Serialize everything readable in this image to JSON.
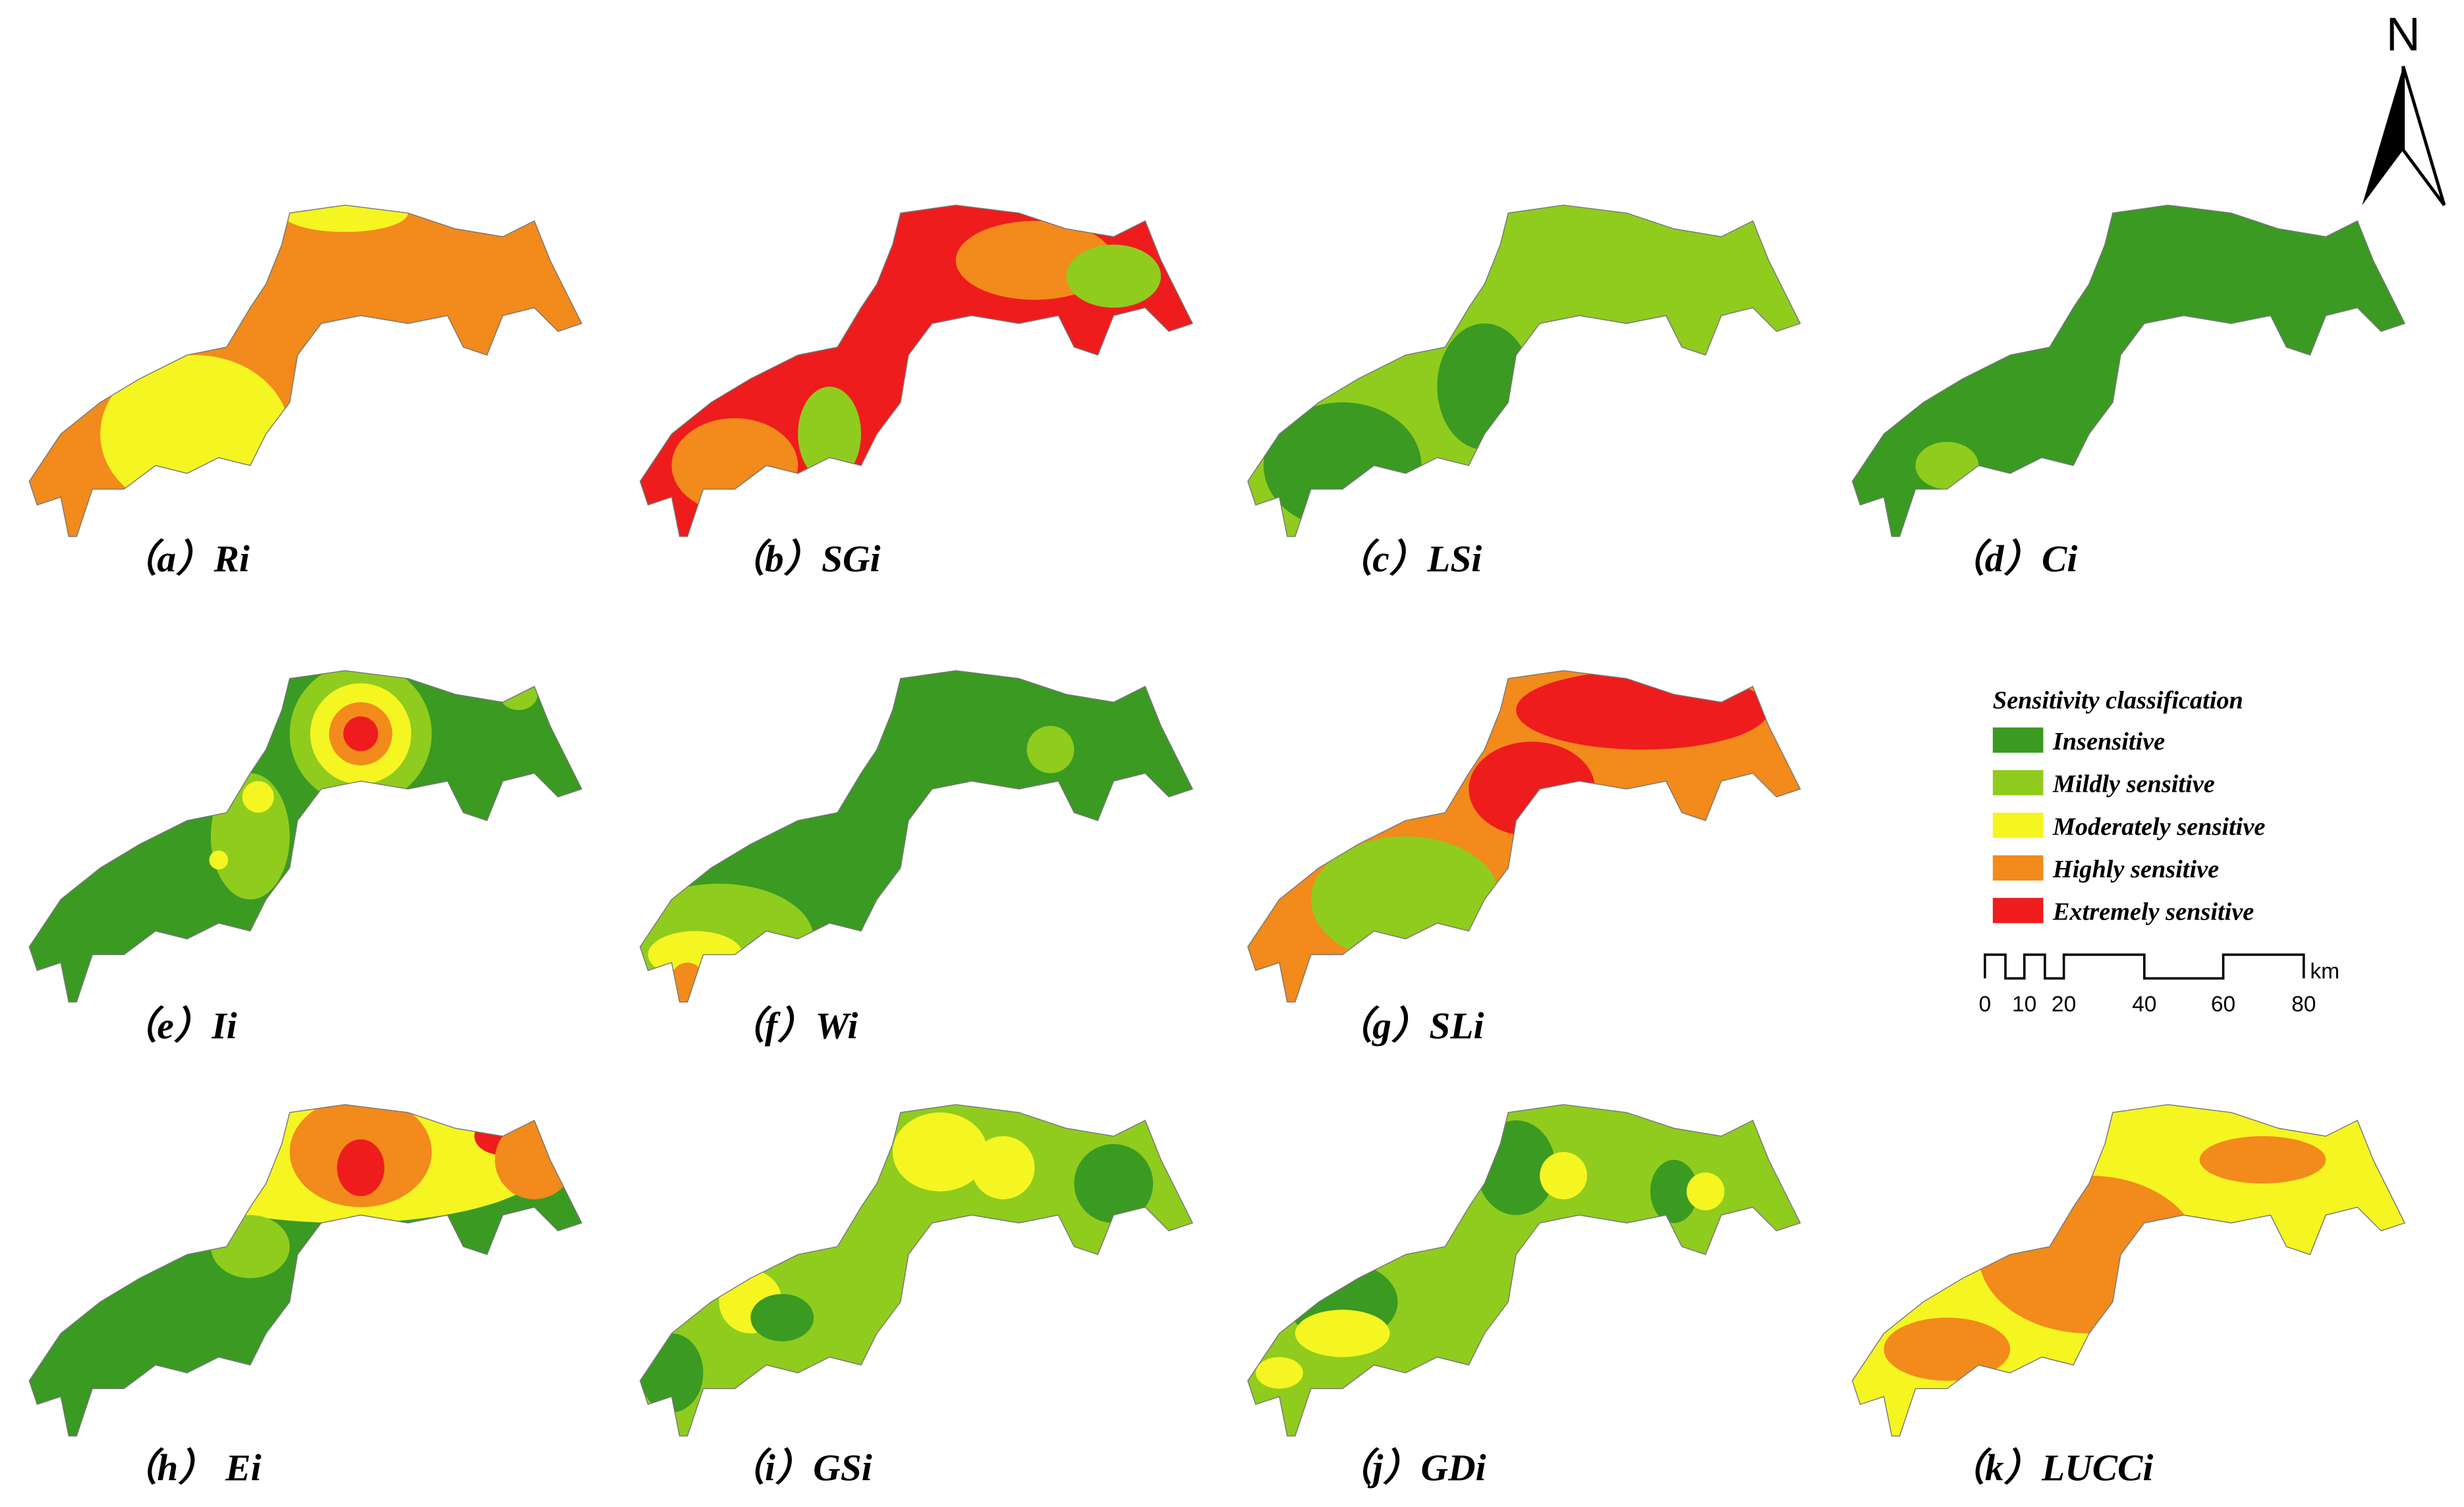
{
  "panels": [
    {
      "label": "（a）Ri"
    },
    {
      "label": "（b）SGi"
    },
    {
      "label": "（c）LSi"
    },
    {
      "label": "（d）Ci"
    },
    {
      "label": "（e）Ii"
    },
    {
      "label": "（f）Wi"
    },
    {
      "label": "（g）SLi"
    },
    {
      "label": "（h） Ei"
    },
    {
      "label": "（i）GSi"
    },
    {
      "label": "（j）GDi"
    },
    {
      "label": "（k）LUCCi"
    }
  ],
  "legend": {
    "title": "Sensitivity classification",
    "items": [
      {
        "label": "Insensitive",
        "color": "#3a9a22"
      },
      {
        "label": "Mildly sensitive",
        "color": "#8fcc1e"
      },
      {
        "label": "Moderately sensitive",
        "color": "#f5f522"
      },
      {
        "label": "Highly sensitive",
        "color": "#f28a1c"
      },
      {
        "label": "Extremely sensitive",
        "color": "#ee1c1c"
      }
    ]
  },
  "scale_bar": {
    "ticks": [
      "0",
      "10",
      "20",
      "40",
      "60",
      "80"
    ],
    "unit": "km"
  },
  "north": "N"
}
